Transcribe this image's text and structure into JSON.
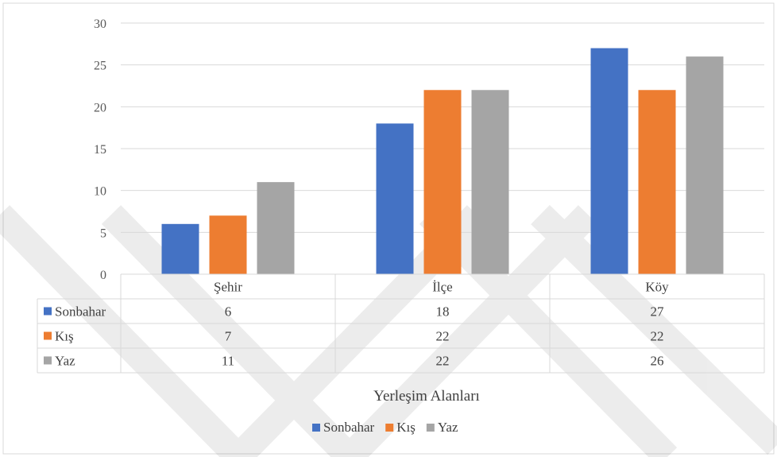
{
  "chart_data": {
    "type": "bar",
    "title": "",
    "xlabel": "Yerleşim Alanları",
    "ylabel": "",
    "ylim": [
      0,
      30
    ],
    "yticks": [
      0,
      5,
      10,
      15,
      20,
      25,
      30
    ],
    "grid": true,
    "legend": "bottom",
    "data_table": true,
    "categories": [
      "Şehir",
      "İlçe",
      "Köy"
    ],
    "series": [
      {
        "name": "Sonbahar",
        "color": "#4472C4",
        "values": [
          6,
          18,
          27
        ]
      },
      {
        "name": "Kış",
        "color": "#ED7D31",
        "values": [
          7,
          22,
          22
        ]
      },
      {
        "name": "Yaz",
        "color": "#A5A5A5",
        "values": [
          11,
          22,
          26
        ]
      }
    ]
  }
}
